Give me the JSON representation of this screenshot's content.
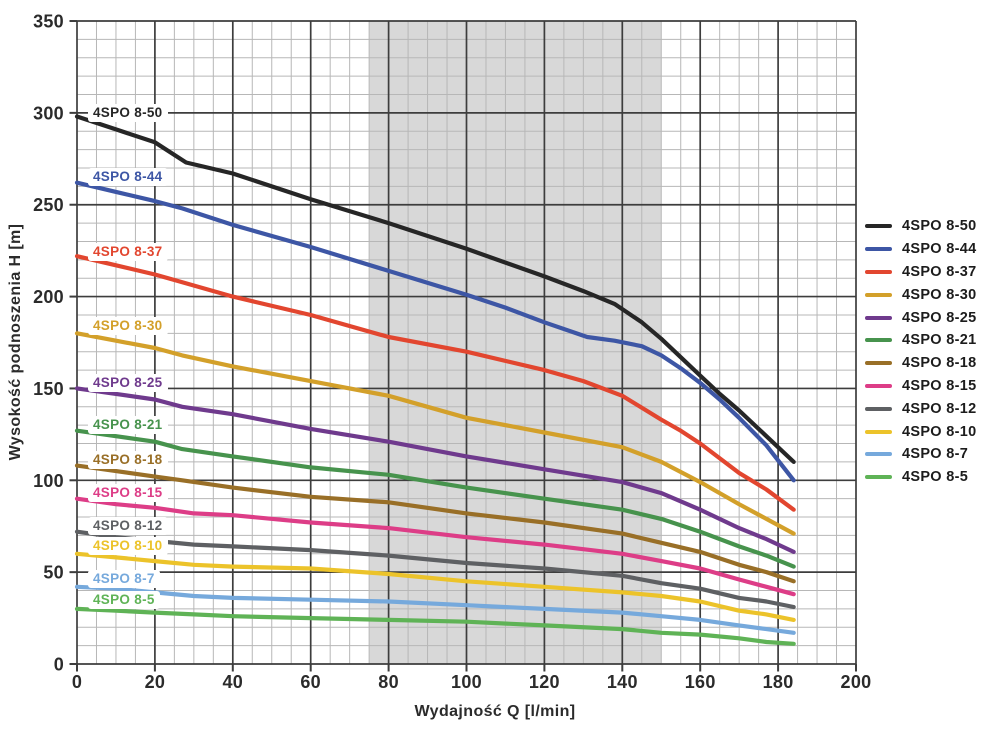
{
  "figure": {
    "background": "#ffffff",
    "text_color": "#2b2b2b",
    "grid_minor_color": "#b7b7b7",
    "grid_major_color": "#3d3d3d"
  },
  "chart_data": {
    "type": "line",
    "title": "",
    "xlabel": "Wydajność Q [l/min]",
    "ylabel": "Wysokość podnoszenia H [m]",
    "xlim": [
      0,
      200
    ],
    "ylim": [
      0,
      350
    ],
    "x_ticks": [
      0,
      20,
      40,
      60,
      80,
      100,
      120,
      140,
      160,
      180,
      200
    ],
    "y_ticks": [
      0,
      50,
      100,
      150,
      200,
      250,
      300,
      350
    ],
    "x_minor_step": 5,
    "y_minor_step": 10,
    "grid": "on",
    "legend_position": "right",
    "band": {
      "name": "recommended-operating-range",
      "x_start": 75,
      "x_end": 150,
      "color": "#d8d8d8"
    },
    "series": [
      {
        "name": "4SPO 8-50",
        "color": "#262626",
        "label_h": 300,
        "points": [
          [
            0,
            298
          ],
          [
            10,
            291
          ],
          [
            20,
            284
          ],
          [
            28,
            273
          ],
          [
            40,
            267
          ],
          [
            60,
            253
          ],
          [
            80,
            240
          ],
          [
            100,
            226
          ],
          [
            120,
            211
          ],
          [
            130,
            203
          ],
          [
            138,
            196
          ],
          [
            145,
            186
          ],
          [
            150,
            177
          ],
          [
            155,
            167
          ],
          [
            160,
            157
          ],
          [
            165,
            147
          ],
          [
            170,
            138
          ],
          [
            177,
            124
          ],
          [
            184,
            110
          ]
        ]
      },
      {
        "name": "4SPO 8-44",
        "color": "#3d56a5",
        "label_h": 265,
        "points": [
          [
            0,
            262
          ],
          [
            10,
            257
          ],
          [
            20,
            252
          ],
          [
            27,
            248
          ],
          [
            40,
            239
          ],
          [
            60,
            227
          ],
          [
            80,
            214
          ],
          [
            100,
            201
          ],
          [
            110,
            194
          ],
          [
            120,
            186
          ],
          [
            131,
            178
          ],
          [
            138,
            176
          ],
          [
            145,
            173
          ],
          [
            150,
            168
          ],
          [
            155,
            161
          ],
          [
            160,
            153
          ],
          [
            165,
            144
          ],
          [
            170,
            134
          ],
          [
            177,
            119
          ],
          [
            184,
            100
          ]
        ]
      },
      {
        "name": "4SPO 8-37",
        "color": "#e2462f",
        "label_h": 224,
        "points": [
          [
            0,
            222
          ],
          [
            10,
            217
          ],
          [
            20,
            212
          ],
          [
            25,
            209
          ],
          [
            40,
            200
          ],
          [
            60,
            190
          ],
          [
            80,
            178
          ],
          [
            100,
            170
          ],
          [
            120,
            160
          ],
          [
            130,
            154
          ],
          [
            140,
            146
          ],
          [
            150,
            133
          ],
          [
            155,
            127
          ],
          [
            160,
            120
          ],
          [
            170,
            104
          ],
          [
            177,
            95
          ],
          [
            184,
            84
          ]
        ]
      },
      {
        "name": "4SPO 8-30",
        "color": "#d3a02a",
        "label_h": 184,
        "points": [
          [
            0,
            180
          ],
          [
            10,
            176
          ],
          [
            20,
            172
          ],
          [
            27,
            168
          ],
          [
            40,
            162
          ],
          [
            60,
            154
          ],
          [
            80,
            146
          ],
          [
            100,
            134
          ],
          [
            120,
            126
          ],
          [
            140,
            118
          ],
          [
            150,
            110
          ],
          [
            160,
            99
          ],
          [
            170,
            87
          ],
          [
            177,
            79
          ],
          [
            184,
            71
          ]
        ]
      },
      {
        "name": "4SPO 8-25",
        "color": "#6f3a8d",
        "label_h": 153,
        "points": [
          [
            0,
            150
          ],
          [
            10,
            147
          ],
          [
            20,
            144
          ],
          [
            27,
            140
          ],
          [
            40,
            136
          ],
          [
            60,
            128
          ],
          [
            80,
            121
          ],
          [
            100,
            113
          ],
          [
            120,
            106
          ],
          [
            140,
            99
          ],
          [
            150,
            93
          ],
          [
            160,
            84
          ],
          [
            170,
            74
          ],
          [
            177,
            68
          ],
          [
            184,
            61
          ]
        ]
      },
      {
        "name": "4SPO 8-21",
        "color": "#47934d",
        "label_h": 130,
        "points": [
          [
            0,
            127
          ],
          [
            10,
            124
          ],
          [
            20,
            121
          ],
          [
            27,
            117
          ],
          [
            40,
            113
          ],
          [
            60,
            107
          ],
          [
            80,
            103
          ],
          [
            100,
            96
          ],
          [
            120,
            90
          ],
          [
            140,
            84
          ],
          [
            150,
            79
          ],
          [
            160,
            72
          ],
          [
            170,
            64
          ],
          [
            177,
            59
          ],
          [
            184,
            53
          ]
        ]
      },
      {
        "name": "4SPO 8-18",
        "color": "#996f27",
        "label_h": 111,
        "points": [
          [
            0,
            108
          ],
          [
            10,
            105
          ],
          [
            20,
            102
          ],
          [
            27,
            100
          ],
          [
            40,
            96
          ],
          [
            60,
            91
          ],
          [
            80,
            88
          ],
          [
            100,
            82
          ],
          [
            120,
            77
          ],
          [
            140,
            71
          ],
          [
            150,
            66
          ],
          [
            160,
            61
          ],
          [
            170,
            54
          ],
          [
            177,
            50
          ],
          [
            184,
            45
          ]
        ]
      },
      {
        "name": "4SPO 8-15",
        "color": "#dd3d87",
        "label_h": 93,
        "points": [
          [
            0,
            90
          ],
          [
            10,
            87
          ],
          [
            20,
            85
          ],
          [
            30,
            82
          ],
          [
            40,
            81
          ],
          [
            60,
            77
          ],
          [
            80,
            74
          ],
          [
            100,
            69
          ],
          [
            120,
            65
          ],
          [
            140,
            60
          ],
          [
            150,
            56
          ],
          [
            160,
            52
          ],
          [
            170,
            46
          ],
          [
            177,
            42
          ],
          [
            184,
            38
          ]
        ]
      },
      {
        "name": "4SPO 8-12",
        "color": "#5e6063",
        "label_h": 75,
        "points": [
          [
            0,
            72
          ],
          [
            10,
            69
          ],
          [
            20,
            67
          ],
          [
            30,
            65
          ],
          [
            40,
            64
          ],
          [
            60,
            62
          ],
          [
            80,
            59
          ],
          [
            100,
            55
          ],
          [
            120,
            52
          ],
          [
            140,
            48
          ],
          [
            150,
            44
          ],
          [
            160,
            41
          ],
          [
            170,
            36
          ],
          [
            177,
            34
          ],
          [
            184,
            31
          ]
        ]
      },
      {
        "name": "4SPO 8-10",
        "color": "#ecc32a",
        "label_h": 64,
        "points": [
          [
            0,
            60
          ],
          [
            10,
            58
          ],
          [
            20,
            56
          ],
          [
            30,
            54
          ],
          [
            40,
            53
          ],
          [
            60,
            52
          ],
          [
            80,
            49
          ],
          [
            100,
            45
          ],
          [
            120,
            42
          ],
          [
            140,
            39
          ],
          [
            150,
            37
          ],
          [
            160,
            34
          ],
          [
            170,
            29
          ],
          [
            177,
            27
          ],
          [
            184,
            24
          ]
        ]
      },
      {
        "name": "4SPO 8-7",
        "color": "#76a9dc",
        "label_h": 46,
        "points": [
          [
            0,
            42
          ],
          [
            10,
            41
          ],
          [
            20,
            39
          ],
          [
            30,
            37
          ],
          [
            40,
            36
          ],
          [
            60,
            35
          ],
          [
            80,
            34
          ],
          [
            100,
            32
          ],
          [
            120,
            30
          ],
          [
            140,
            28
          ],
          [
            150,
            26
          ],
          [
            160,
            24
          ],
          [
            170,
            21
          ],
          [
            177,
            19
          ],
          [
            184,
            17
          ]
        ]
      },
      {
        "name": "4SPO 8-5",
        "color": "#5fb356",
        "label_h": 35,
        "points": [
          [
            0,
            30
          ],
          [
            10,
            29
          ],
          [
            20,
            28
          ],
          [
            30,
            27
          ],
          [
            40,
            26
          ],
          [
            60,
            25
          ],
          [
            80,
            24
          ],
          [
            100,
            23
          ],
          [
            120,
            21
          ],
          [
            140,
            19
          ],
          [
            150,
            17
          ],
          [
            160,
            16
          ],
          [
            170,
            14
          ],
          [
            177,
            12
          ],
          [
            184,
            11
          ]
        ]
      }
    ]
  }
}
